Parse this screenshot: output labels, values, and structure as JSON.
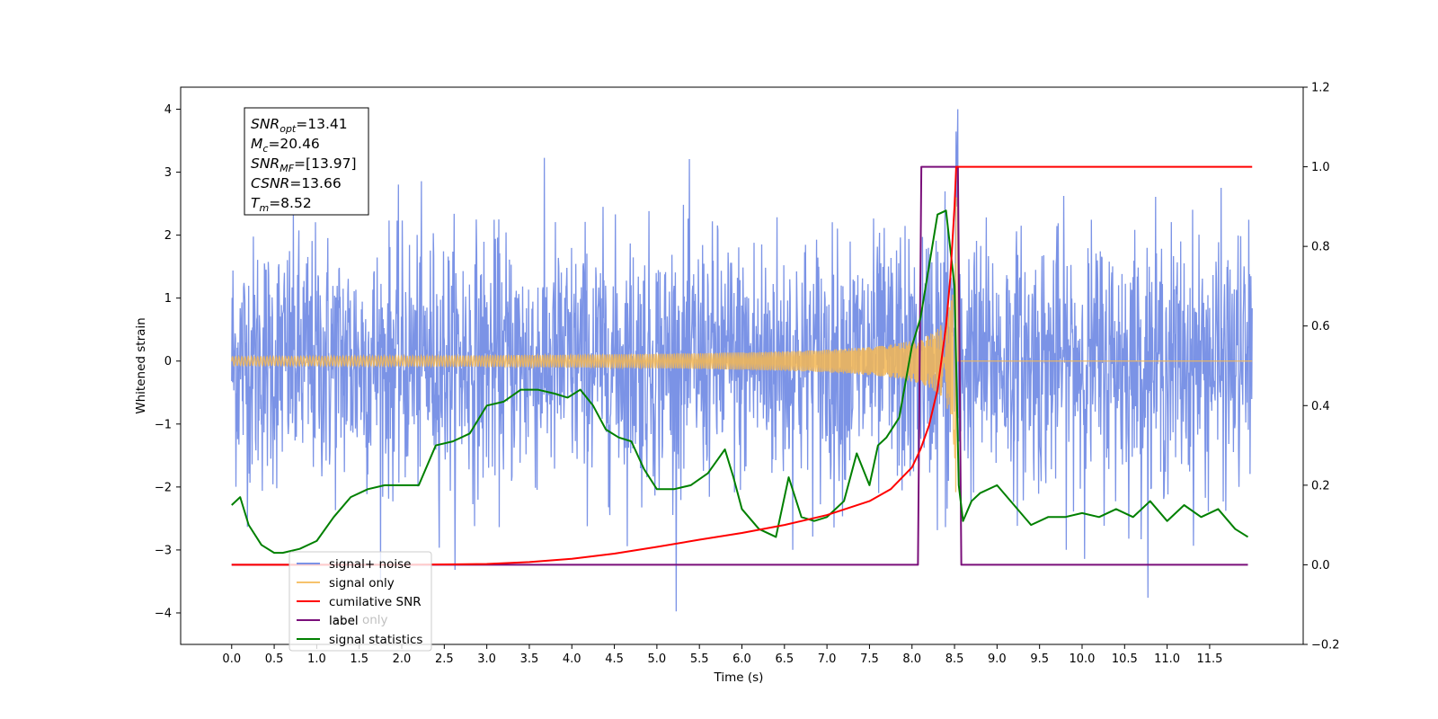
{
  "chart_data": {
    "type": "line",
    "xlabel": "Time (s)",
    "ylabel": "Whitened strain",
    "xlim": [
      -0.6,
      12.6
    ],
    "ylim": [
      -4.5,
      4.35
    ],
    "y2lim": [
      -0.2,
      1.2
    ],
    "x_ticks": [
      0.0,
      0.5,
      1.0,
      1.5,
      2.0,
      2.5,
      3.0,
      3.5,
      4.0,
      4.5,
      5.0,
      5.5,
      6.0,
      6.5,
      7.0,
      7.5,
      8.0,
      8.5,
      9.0,
      9.5,
      10.0,
      10.5,
      11.0,
      11.5
    ],
    "x_tick_labels": [
      "0.0",
      "0.5",
      "1.0",
      "1.5",
      "2.0",
      "2.5",
      "3.0",
      "3.5",
      "4.0",
      "4.5",
      "5.0",
      "5.5",
      "6.0",
      "6.5",
      "7.0",
      "7.5",
      "8.0",
      "8.5",
      "9.0",
      "9.5",
      "10.0",
      "10.5",
      "11.0",
      "11.5"
    ],
    "y_ticks": [
      4,
      3,
      2,
      1,
      0,
      -1,
      -2,
      -3,
      -4
    ],
    "y_tick_labels": [
      "4",
      "3",
      "2",
      "1",
      "0",
      "−1",
      "−2",
      "−3",
      "−4"
    ],
    "y2_ticks": [
      1.2,
      1.0,
      0.8,
      0.6,
      0.4,
      0.2,
      0.0,
      -0.2
    ],
    "y2_tick_labels": [
      "1.2",
      "1.0",
      "0.8",
      "0.6",
      "0.4",
      "0.2",
      "0.0",
      "−0.2"
    ],
    "legend_placement": "lower-left",
    "stats": [
      {
        "base": "SNR",
        "sub": "opt",
        "value": "=13.41"
      },
      {
        "base": "M",
        "sub": "c",
        "value": "=20.46"
      },
      {
        "base": "SNR",
        "sub": "MF",
        "value": "=[13.97]"
      },
      {
        "base": "CSNR",
        "sub": "",
        "value": "=13.66"
      },
      {
        "base": "T",
        "sub": "m",
        "value": "=8.52"
      }
    ],
    "noise": {
      "x_range": [
        0.0,
        12.0
      ],
      "points": 2400,
      "sigma": 1.0,
      "envelope_max": 4.0,
      "envelope_min": -4.1
    },
    "signal": {
      "x_start": 0.0,
      "x_merge": 8.52,
      "x_end": 12.0,
      "amp_start": 0.0,
      "amp_peak": 2.9
    },
    "series": [
      {
        "name": "signal+ noise",
        "color": "#7b93e6",
        "axis": "left"
      },
      {
        "name": "signal only",
        "color": "#f5b752",
        "axis": "left"
      },
      {
        "name": "cumilative SNR",
        "color": "#ff0000",
        "axis": "right",
        "x": [
          0.0,
          1.0,
          2.0,
          3.0,
          3.5,
          4.0,
          4.5,
          5.0,
          5.5,
          6.0,
          6.5,
          7.0,
          7.5,
          7.75,
          8.0,
          8.1,
          8.2,
          8.3,
          8.4,
          8.45,
          8.5,
          8.52,
          8.55,
          12.0
        ],
        "values": [
          0.0,
          0.0,
          0.0,
          0.002,
          0.007,
          0.015,
          0.028,
          0.045,
          0.063,
          0.08,
          0.1,
          0.125,
          0.16,
          0.19,
          0.245,
          0.29,
          0.35,
          0.44,
          0.6,
          0.72,
          0.9,
          1.0,
          1.0,
          1.0
        ]
      },
      {
        "name": "label",
        "color": "#7a0f7a",
        "axis": "right",
        "x": [
          0.0,
          8.07,
          8.11,
          8.54,
          8.58,
          11.95
        ],
        "values": [
          0.0,
          0.0,
          1.0,
          1.0,
          0.0,
          0.0
        ]
      },
      {
        "name": "label only",
        "color": "#7a0f7a",
        "axis": "right",
        "hidden": true
      },
      {
        "name": "signal statistics",
        "color": "#008000",
        "axis": "right",
        "x": [
          0.0,
          0.1,
          0.2,
          0.35,
          0.5,
          0.6,
          0.8,
          1.0,
          1.2,
          1.4,
          1.6,
          1.8,
          2.0,
          2.2,
          2.4,
          2.6,
          2.8,
          3.0,
          3.2,
          3.4,
          3.6,
          3.8,
          3.95,
          4.1,
          4.25,
          4.4,
          4.55,
          4.7,
          4.85,
          5.0,
          5.2,
          5.4,
          5.6,
          5.8,
          5.9,
          6.0,
          6.2,
          6.4,
          6.55,
          6.7,
          6.85,
          7.0,
          7.2,
          7.35,
          7.5,
          7.6,
          7.7,
          7.85,
          8.0,
          8.1,
          8.2,
          8.3,
          8.4,
          8.5,
          8.55,
          8.6,
          8.7,
          8.8,
          9.0,
          9.2,
          9.4,
          9.6,
          9.8,
          10.0,
          10.2,
          10.4,
          10.6,
          10.8,
          11.0,
          11.2,
          11.4,
          11.6,
          11.8,
          11.95
        ],
        "values": [
          0.15,
          0.17,
          0.1,
          0.05,
          0.03,
          0.03,
          0.04,
          0.06,
          0.12,
          0.17,
          0.19,
          0.2,
          0.2,
          0.2,
          0.3,
          0.31,
          0.33,
          0.4,
          0.41,
          0.44,
          0.44,
          0.43,
          0.42,
          0.44,
          0.4,
          0.34,
          0.32,
          0.31,
          0.24,
          0.19,
          0.19,
          0.2,
          0.23,
          0.29,
          0.22,
          0.14,
          0.09,
          0.07,
          0.22,
          0.12,
          0.11,
          0.12,
          0.16,
          0.28,
          0.2,
          0.3,
          0.32,
          0.37,
          0.55,
          0.62,
          0.75,
          0.88,
          0.89,
          0.7,
          0.2,
          0.11,
          0.16,
          0.18,
          0.2,
          0.15,
          0.1,
          0.12,
          0.12,
          0.13,
          0.12,
          0.14,
          0.12,
          0.16,
          0.11,
          0.15,
          0.12,
          0.14,
          0.09,
          0.07
        ]
      }
    ]
  }
}
